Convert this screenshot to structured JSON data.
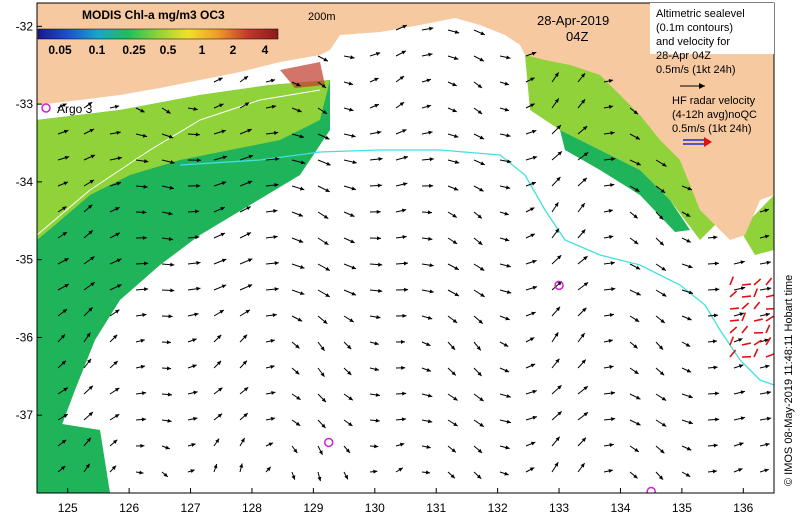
{
  "colorbar": {
    "title": "MODIS Chl-a mg/m3 OC3",
    "ticks": [
      "0.05",
      "0.1",
      "0.25",
      "0.5",
      "1",
      "2",
      "4"
    ],
    "colors": [
      "#1a1a8c",
      "#1e4fd0",
      "#17a6c8",
      "#1fbf5a",
      "#8fd23a",
      "#f2e02a",
      "#f09a2a",
      "#c0392b",
      "#8b1a1a"
    ]
  },
  "isobath_label": "200m",
  "date": "28-Apr-2019",
  "time": "04Z",
  "argo_label": "Argo 3",
  "legend": {
    "altimetry_lines": [
      "Altimetric sealevel",
      "(0.1m contours)",
      "and velocity for",
      "28-Apr 04Z",
      "0.5m/s (1kt 24h)"
    ],
    "hf_lines": [
      "HF radar velocity",
      "(4-12h avg)noQC",
      "0.5m/s (1kt 24h)"
    ]
  },
  "x_ticks": [
    "125",
    "126",
    "127",
    "128",
    "129",
    "130",
    "131",
    "132",
    "133",
    "134",
    "135",
    "136"
  ],
  "y_ticks": [
    "-32",
    "-33",
    "-34",
    "-35",
    "-36",
    "-37"
  ],
  "credit": "© IMOS 08-May-2019 11:48:11 Hobart time",
  "colors": {
    "land": "#f6c9a0",
    "vector": "#000000",
    "hf_vector": "#e01010",
    "argo": "#d020d0",
    "contour": "#40e0e0",
    "chl_low": "#1fb35a",
    "chl_mid": "#8fd23a"
  },
  "argo_floats": [
    {
      "lon": 133.0,
      "lat": -35.33
    },
    {
      "lon": 129.25,
      "lat": -37.35
    },
    {
      "lon": 134.5,
      "lat": -37.98
    }
  ]
}
